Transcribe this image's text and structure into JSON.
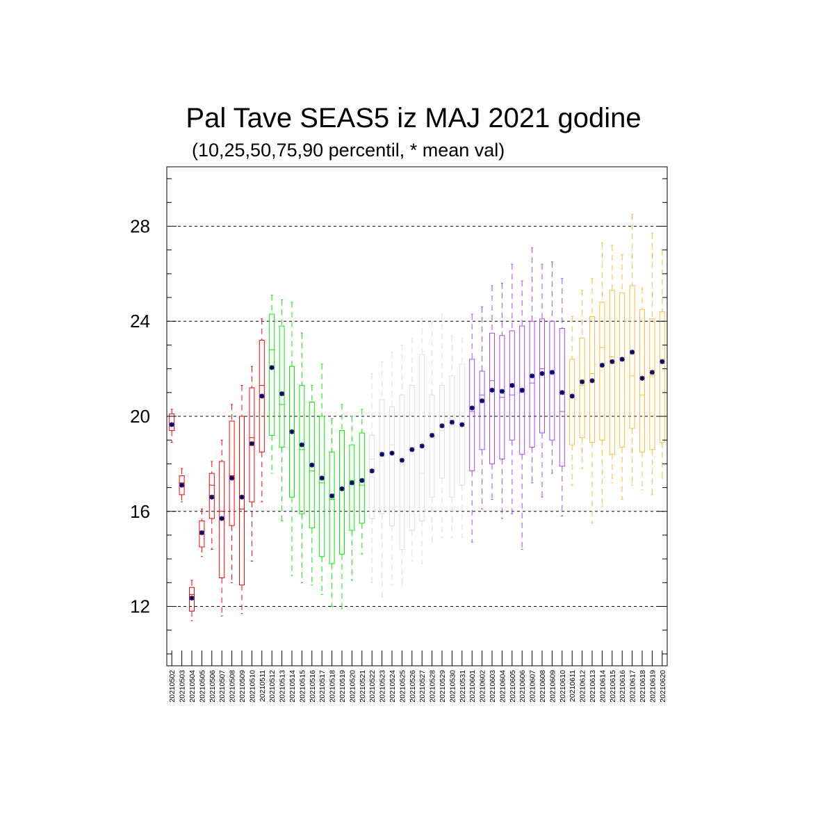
{
  "chart_data": {
    "type": "boxplot",
    "title": "Pal Tave SEAS5 iz MAJ 2021 godine",
    "subtitle": "(10,25,50,75,90 percentil, * mean val)",
    "xlabel": "",
    "ylabel": "",
    "ylim": [
      9.5,
      30.5
    ],
    "yticks": [
      12,
      16,
      20,
      24,
      28
    ],
    "grid": "horizontal dashed at major ticks",
    "mean_color": "#000066",
    "categories": [
      "20210502",
      "20210503",
      "20210504",
      "20210505",
      "20210506",
      "20210507",
      "20210508",
      "20210509",
      "20210510",
      "20210511",
      "20210512",
      "20210513",
      "20210514",
      "20210515",
      "20210516",
      "20210517",
      "20210518",
      "20210519",
      "20210520",
      "20210521",
      "20210522",
      "20210523",
      "20210524",
      "20210525",
      "20210526",
      "20210527",
      "20210528",
      "20210529",
      "20210530",
      "20210531",
      "20210601",
      "20210602",
      "20210603",
      "20210604",
      "20210605",
      "20210606",
      "20210607",
      "20210608",
      "20210609",
      "20210610",
      "20210611",
      "20210612",
      "20210613",
      "20210614",
      "20210615",
      "20210616",
      "20210617",
      "20210618",
      "20210619",
      "20210620"
    ],
    "boxes": [
      {
        "p10": 18.9,
        "p25": 19.4,
        "p50": 19.7,
        "p75": 20.1,
        "p90": 20.3,
        "mean": 19.65,
        "color": "#ff0000"
      },
      {
        "p10": 16.4,
        "p25": 16.7,
        "p50": 17.2,
        "p75": 17.5,
        "p90": 17.8,
        "mean": 17.1,
        "color": "#ff0000"
      },
      {
        "p10": 11.4,
        "p25": 11.8,
        "p50": 12.5,
        "p75": 12.8,
        "p90": 13.1,
        "mean": 12.35,
        "color": "#ff0000"
      },
      {
        "p10": 14.1,
        "p25": 14.5,
        "p50": 15.1,
        "p75": 15.6,
        "p90": 16.1,
        "mean": 15.1,
        "color": "#ff0000"
      },
      {
        "p10": 14.4,
        "p25": 15.7,
        "p50": 17.1,
        "p75": 17.6,
        "p90": 18.1,
        "mean": 16.6,
        "color": "#ff0000"
      },
      {
        "p10": 11.6,
        "p25": 13.2,
        "p50": 16.0,
        "p75": 18.1,
        "p90": 19.0,
        "mean": 15.7,
        "color": "#ff0000"
      },
      {
        "p10": 13.0,
        "p25": 15.4,
        "p50": 17.5,
        "p75": 19.8,
        "p90": 20.5,
        "mean": 17.4,
        "color": "#ff0000"
      },
      {
        "p10": 11.7,
        "p25": 12.9,
        "p50": 16.1,
        "p75": 20.0,
        "p90": 21.3,
        "mean": 16.6,
        "color": "#ff0000"
      },
      {
        "p10": 13.9,
        "p25": 16.4,
        "p50": 19.1,
        "p75": 21.2,
        "p90": 22.1,
        "mean": 18.85,
        "color": "#ff0000"
      },
      {
        "p10": 16.4,
        "p25": 18.5,
        "p50": 21.3,
        "p75": 23.2,
        "p90": 24.1,
        "mean": 20.85,
        "color": "#ff0000"
      },
      {
        "p10": 17.6,
        "p25": 19.2,
        "p50": 22.8,
        "p75": 24.3,
        "p90": 25.1,
        "mean": 22.05,
        "color": "#00ee00"
      },
      {
        "p10": 15.6,
        "p25": 18.7,
        "p50": 20.5,
        "p75": 23.8,
        "p90": 24.9,
        "mean": 20.95,
        "color": "#00ee00"
      },
      {
        "p10": 13.3,
        "p25": 16.6,
        "p50": 19.4,
        "p75": 22.1,
        "p90": 24.8,
        "mean": 19.35,
        "color": "#00ee00"
      },
      {
        "p10": 13.0,
        "p25": 15.9,
        "p50": 18.6,
        "p75": 21.3,
        "p90": 23.5,
        "mean": 18.8,
        "color": "#00ee00"
      },
      {
        "p10": 12.9,
        "p25": 15.3,
        "p50": 17.7,
        "p75": 20.6,
        "p90": 21.3,
        "mean": 17.95,
        "color": "#00ee00"
      },
      {
        "p10": 12.5,
        "p25": 14.1,
        "p50": 17.2,
        "p75": 20.0,
        "p90": 22.2,
        "mean": 17.4,
        "color": "#00ee00"
      },
      {
        "p10": 12.0,
        "p25": 13.8,
        "p50": 16.5,
        "p75": 18.5,
        "p90": 19.9,
        "mean": 16.65,
        "color": "#00ee00"
      },
      {
        "p10": 11.9,
        "p25": 14.2,
        "p50": 17.0,
        "p75": 19.4,
        "p90": 20.5,
        "mean": 16.95,
        "color": "#00ee00"
      },
      {
        "p10": 13.1,
        "p25": 15.2,
        "p50": 17.3,
        "p75": 18.8,
        "p90": 20.0,
        "mean": 17.2,
        "color": "#00ee00"
      },
      {
        "p10": 14.2,
        "p25": 15.5,
        "p50": 17.1,
        "p75": 19.3,
        "p90": 20.3,
        "mean": 17.3,
        "color": "#00ee00"
      },
      {
        "p10": 13.0,
        "p25": 15.7,
        "p50": 18.2,
        "p75": 19.2,
        "p90": 21.8,
        "mean": 17.7,
        "color": "#dddddd"
      },
      {
        "p10": 12.4,
        "p25": 15.9,
        "p50": 18.5,
        "p75": 20.7,
        "p90": 22.3,
        "mean": 18.4,
        "color": "#dddddd"
      },
      {
        "p10": 12.9,
        "p25": 15.4,
        "p50": 18.8,
        "p75": 20.4,
        "p90": 22.7,
        "mean": 18.45,
        "color": "#dddddd"
      },
      {
        "p10": 12.9,
        "p25": 14.4,
        "p50": 18.0,
        "p75": 20.9,
        "p90": 23.0,
        "mean": 18.15,
        "color": "#dddddd"
      },
      {
        "p10": 13.9,
        "p25": 15.2,
        "p50": 18.4,
        "p75": 21.3,
        "p90": 23.3,
        "mean": 18.6,
        "color": "#dddddd"
      },
      {
        "p10": 13.8,
        "p25": 15.6,
        "p50": 17.6,
        "p75": 22.6,
        "p90": 24.1,
        "mean": 18.75,
        "color": "#dddddd"
      },
      {
        "p10": 14.7,
        "p25": 16.6,
        "p50": 19.2,
        "p75": 20.9,
        "p90": 24.0,
        "mean": 19.2,
        "color": "#dddddd"
      },
      {
        "p10": 14.9,
        "p25": 17.4,
        "p50": 19.4,
        "p75": 21.3,
        "p90": 24.3,
        "mean": 19.6,
        "color": "#dddddd"
      },
      {
        "p10": 14.9,
        "p25": 16.6,
        "p50": 19.6,
        "p75": 21.7,
        "p90": 23.4,
        "mean": 19.75,
        "color": "#dddddd"
      },
      {
        "p10": 14.9,
        "p25": 17.1,
        "p50": 19.6,
        "p75": 22.2,
        "p90": 23.3,
        "mean": 19.65,
        "color": "#dddddd"
      },
      {
        "p10": 14.7,
        "p25": 17.7,
        "p50": 20.2,
        "p75": 22.4,
        "p90": 24.3,
        "mean": 20.35,
        "color": "#aa44ff"
      },
      {
        "p10": 16.1,
        "p25": 18.6,
        "p50": 20.9,
        "p75": 21.9,
        "p90": 24.6,
        "mean": 20.65,
        "color": "#aa44ff"
      },
      {
        "p10": 16.5,
        "p25": 18.0,
        "p50": 21.5,
        "p75": 23.5,
        "p90": 25.5,
        "mean": 21.1,
        "color": "#aa44ff"
      },
      {
        "p10": 15.7,
        "p25": 18.2,
        "p50": 20.8,
        "p75": 23.4,
        "p90": 25.6,
        "mean": 21.05,
        "color": "#aa44ff"
      },
      {
        "p10": 15.9,
        "p25": 19.0,
        "p50": 20.9,
        "p75": 23.6,
        "p90": 26.4,
        "mean": 21.3,
        "color": "#aa44ff"
      },
      {
        "p10": 14.4,
        "p25": 18.4,
        "p50": 21.0,
        "p75": 23.8,
        "p90": 25.7,
        "mean": 21.1,
        "color": "#aa44ff"
      },
      {
        "p10": 17.2,
        "p25": 18.7,
        "p50": 21.4,
        "p75": 24.0,
        "p90": 27.1,
        "mean": 21.7,
        "color": "#aa44ff"
      },
      {
        "p10": 16.6,
        "p25": 19.3,
        "p50": 22.0,
        "p75": 24.1,
        "p90": 26.4,
        "mean": 21.8,
        "color": "#aa44ff"
      },
      {
        "p10": 17.6,
        "p25": 19.0,
        "p50": 21.8,
        "p75": 24.0,
        "p90": 26.5,
        "mean": 21.85,
        "color": "#aa44ff"
      },
      {
        "p10": 15.8,
        "p25": 17.9,
        "p50": 20.2,
        "p75": 23.7,
        "p90": 25.8,
        "mean": 21.0,
        "color": "#aa44ff"
      },
      {
        "p10": 17.1,
        "p25": 18.8,
        "p50": 20.8,
        "p75": 22.4,
        "p90": 24.2,
        "mean": 20.85,
        "color": "#ffbb33"
      },
      {
        "p10": 17.8,
        "p25": 19.1,
        "p50": 21.3,
        "p75": 23.3,
        "p90": 25.3,
        "mean": 21.45,
        "color": "#ffbb33"
      },
      {
        "p10": 15.5,
        "p25": 18.9,
        "p50": 21.8,
        "p75": 24.2,
        "p90": 25.8,
        "mean": 21.5,
        "color": "#ffbb33"
      },
      {
        "p10": 16.2,
        "p25": 19.0,
        "p50": 22.9,
        "p75": 24.8,
        "p90": 27.3,
        "mean": 22.15,
        "color": "#ffbb33"
      },
      {
        "p10": 17.2,
        "p25": 18.4,
        "p50": 22.5,
        "p75": 25.3,
        "p90": 27.2,
        "mean": 22.3,
        "color": "#ffbb33"
      },
      {
        "p10": 16.5,
        "p25": 18.7,
        "p50": 22.4,
        "p75": 25.2,
        "p90": 26.8,
        "mean": 22.4,
        "color": "#ffbb33"
      },
      {
        "p10": 17.1,
        "p25": 19.5,
        "p50": 21.7,
        "p75": 25.5,
        "p90": 28.5,
        "mean": 22.7,
        "color": "#ffbb33"
      },
      {
        "p10": 16.9,
        "p25": 18.5,
        "p50": 20.9,
        "p75": 24.5,
        "p90": 25.4,
        "mean": 21.6,
        "color": "#ffbb33"
      },
      {
        "p10": 16.7,
        "p25": 18.6,
        "p50": 21.7,
        "p75": 24.1,
        "p90": 27.7,
        "mean": 21.85,
        "color": "#ffbb33"
      },
      {
        "p10": 17.4,
        "p25": 18.9,
        "p50": 22.4,
        "p75": 24.4,
        "p90": 27.0,
        "mean": 22.3,
        "color": "#ffbb33"
      }
    ]
  }
}
